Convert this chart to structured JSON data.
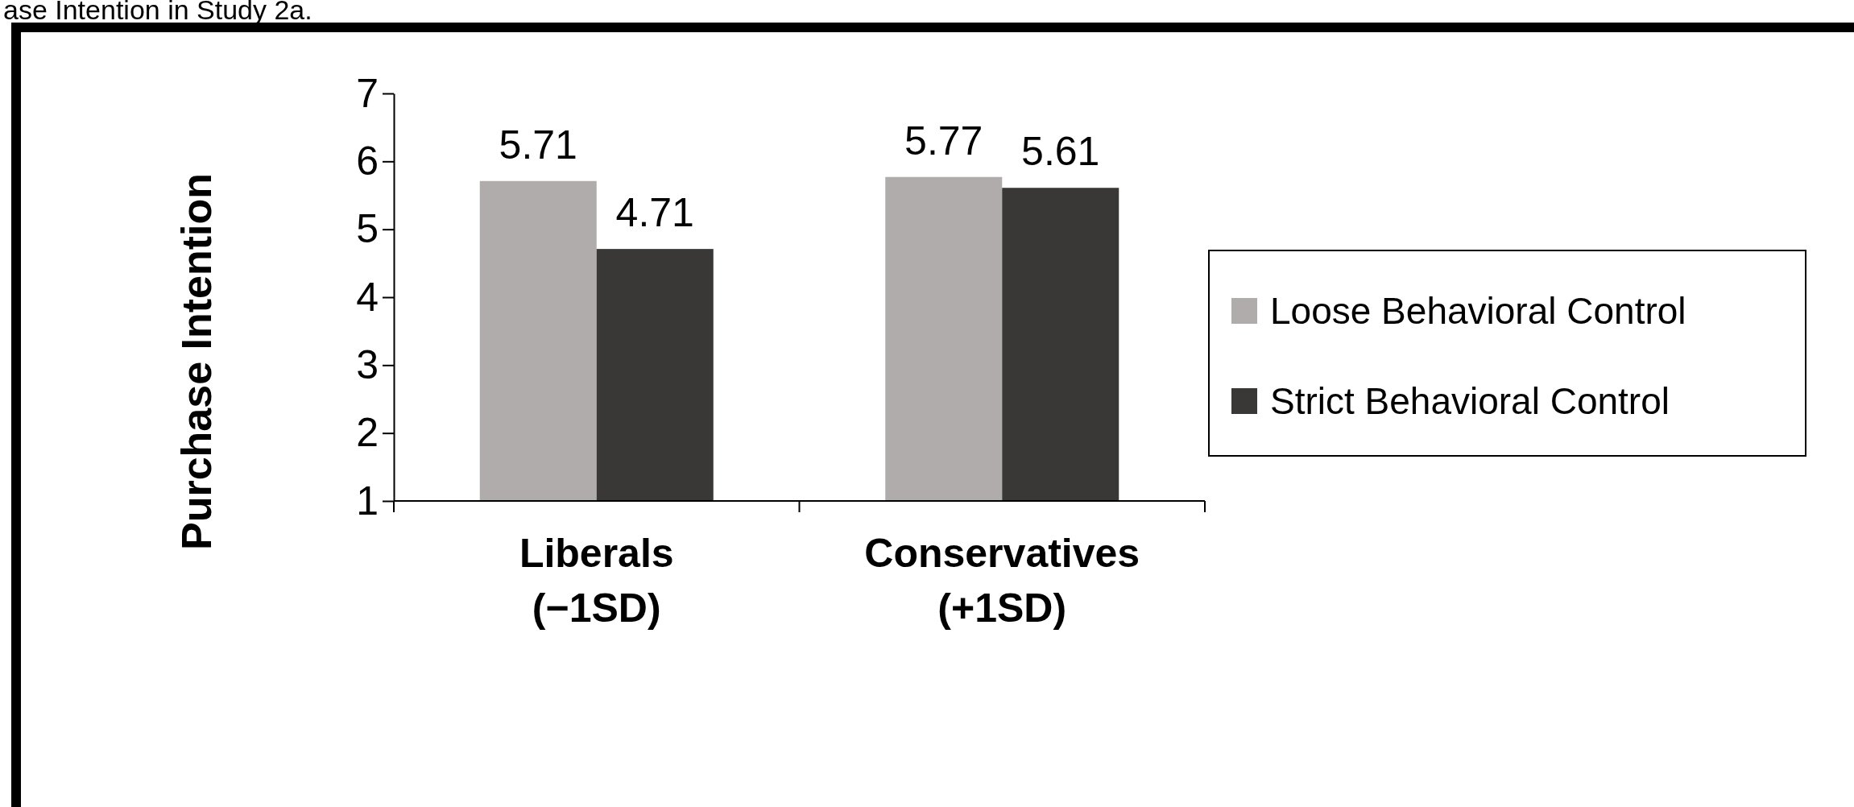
{
  "chart_data": {
    "type": "bar",
    "title": "ase Intention in Study 2a.",
    "ylabel": "Purchase Intention",
    "categories": [
      "Liberals\n(−1SD)",
      "Conservatives\n(+1SD)"
    ],
    "series": [
      {
        "name": "Loose Behavioral Control",
        "color": "#b0acab",
        "values": [
          5.71,
          5.77
        ]
      },
      {
        "name": "Strict Behavioral Control",
        "color": "#393837",
        "values": [
          4.71,
          5.61
        ]
      }
    ],
    "ylim": [
      1,
      7
    ],
    "yticks": [
      1,
      2,
      3,
      4,
      5,
      6,
      7
    ],
    "data_labels": true,
    "legend": "right"
  }
}
